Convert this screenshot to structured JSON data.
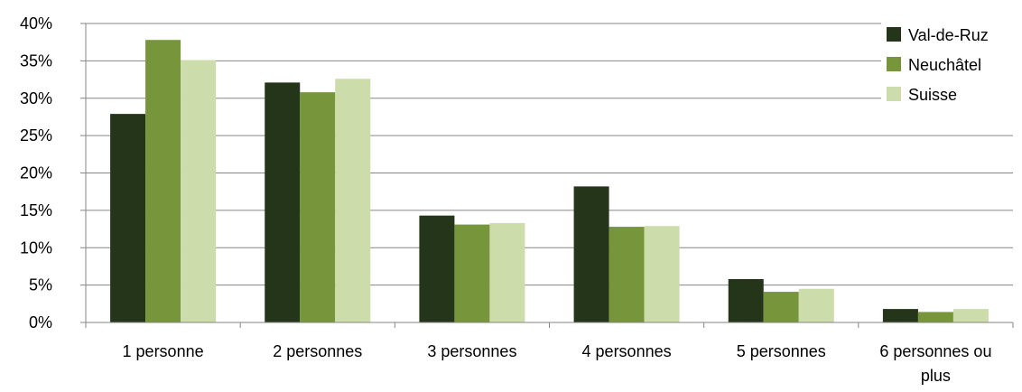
{
  "chart_data": {
    "type": "bar",
    "categories": [
      "1 personne",
      "2 personnes",
      "3 personnes",
      "4 personnes",
      "5 personnes",
      "6 personnes ou plus"
    ],
    "series": [
      {
        "name": "Val-de-Ruz",
        "color": "#243519",
        "values": [
          0.279,
          0.321,
          0.143,
          0.182,
          0.058,
          0.018
        ]
      },
      {
        "name": "Neuchâtel",
        "color": "#77963b",
        "values": [
          0.378,
          0.308,
          0.131,
          0.128,
          0.041,
          0.014
        ]
      },
      {
        "name": "Suisse",
        "color": "#ccdcaa",
        "values": [
          0.351,
          0.326,
          0.133,
          0.129,
          0.045,
          0.018
        ]
      }
    ],
    "y_ticks": [
      "0%",
      "5%",
      "10%",
      "15%",
      "20%",
      "25%",
      "30%",
      "35%",
      "40%"
    ],
    "ylim": [
      0,
      0.4
    ],
    "title": "",
    "xlabel": "",
    "ylabel": "",
    "grid": true,
    "legend_position": "top-right"
  }
}
